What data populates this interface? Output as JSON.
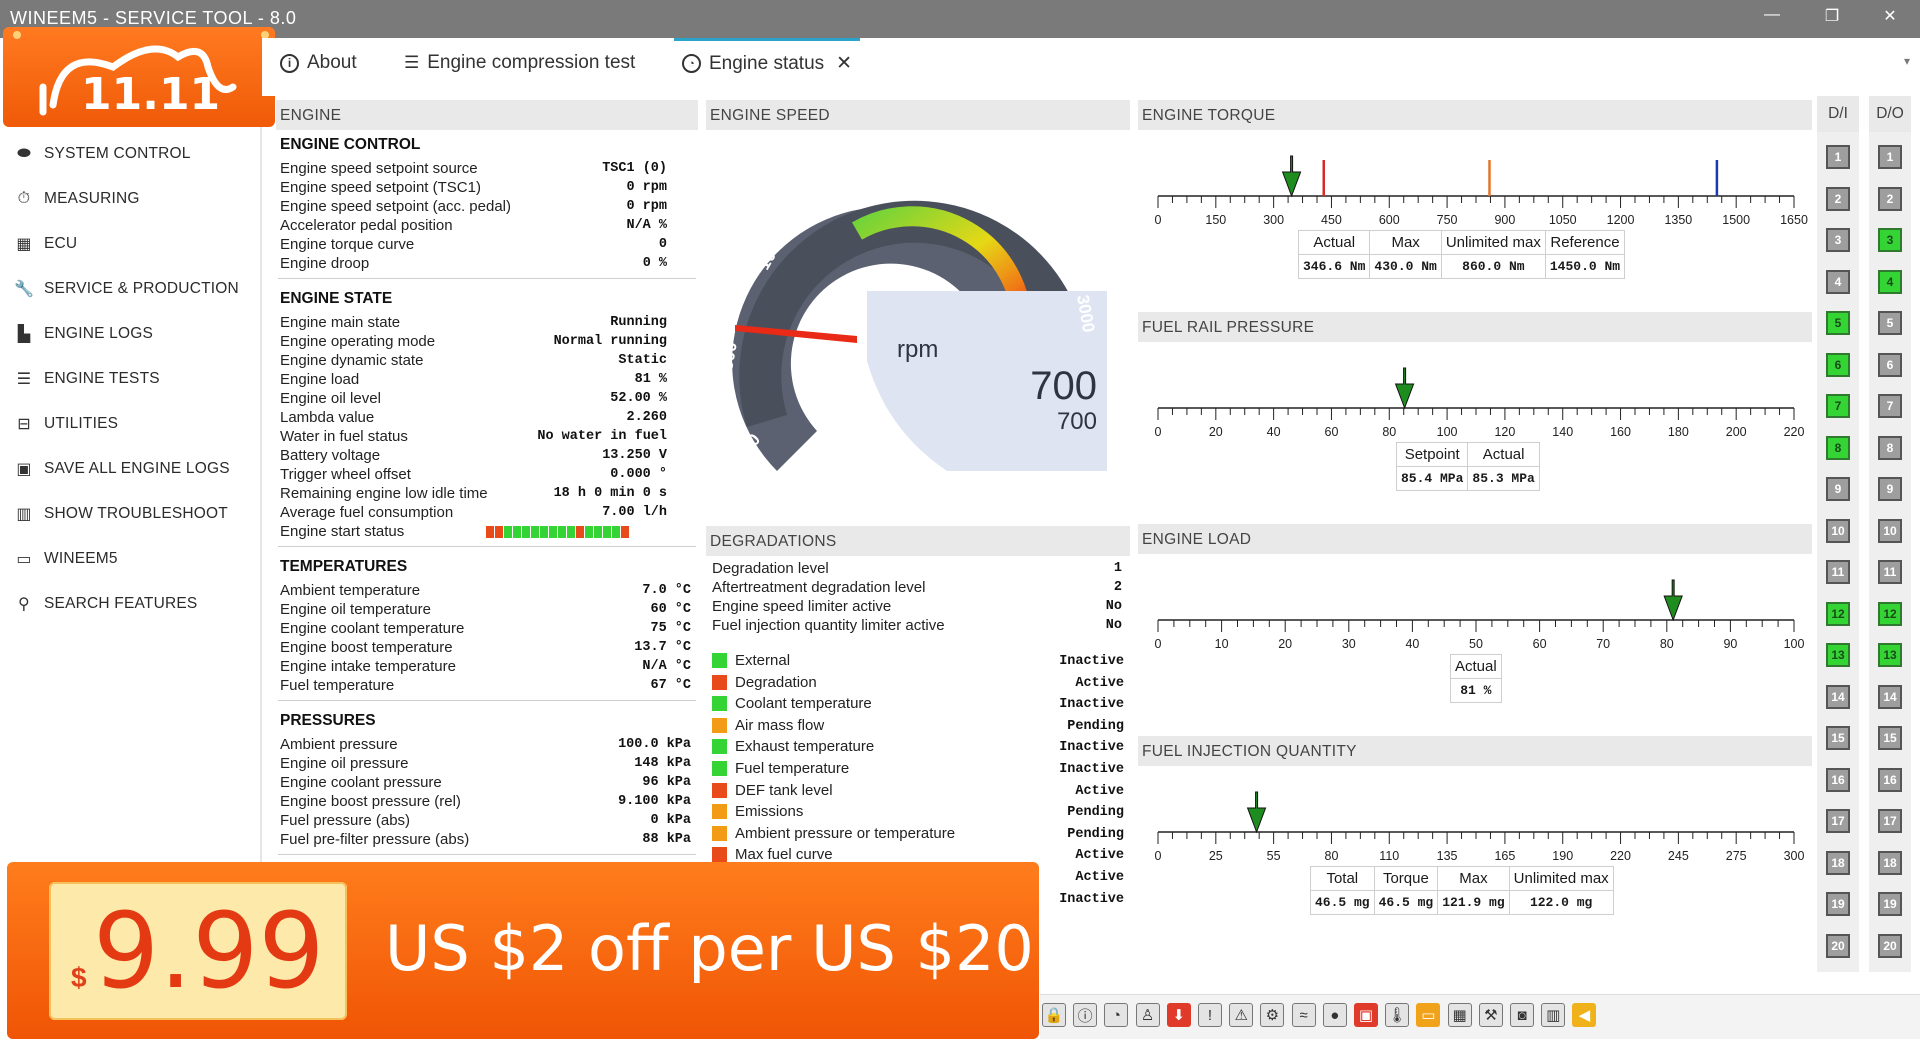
{
  "window": {
    "title": "WINEEM5 - SERVICE TOOL - 8.0",
    "minimize": "—",
    "restore": "❐",
    "close": "✕"
  },
  "promo": {
    "top_logo_text": "11.11",
    "price_currency": "$",
    "price": "9.99",
    "offer": "US $2 off per US $20"
  },
  "sidebar": {
    "items": [
      {
        "label": "SYSTEM CONTROL",
        "icon": "toggle-icon"
      },
      {
        "label": "MEASURING",
        "icon": "stopwatch-icon"
      },
      {
        "label": "ECU",
        "icon": "chip-icon"
      },
      {
        "label": "SERVICE & PRODUCTION",
        "icon": "wrench-icon"
      },
      {
        "label": "ENGINE LOGS",
        "icon": "bar-chart-icon"
      },
      {
        "label": "ENGINE TESTS",
        "icon": "checklist-icon"
      },
      {
        "label": "UTILITIES",
        "icon": "toolbox-icon"
      },
      {
        "label": "SAVE ALL ENGINE LOGS",
        "icon": "save-icon"
      },
      {
        "label": "SHOW TROUBLESHOOT",
        "icon": "book-icon"
      },
      {
        "label": "WINEEM5",
        "icon": "window-icon"
      },
      {
        "label": "SEARCH FEATURES",
        "icon": "search-icon"
      }
    ]
  },
  "tabs": [
    {
      "label": "About",
      "icon": "info-icon"
    },
    {
      "label": "Engine compression test",
      "icon": "list-icon"
    },
    {
      "label": "Engine status",
      "icon": "gauge-icon",
      "close": "✕",
      "active": true
    }
  ],
  "engine": {
    "header": "ENGINE",
    "sections": [
      {
        "title": "ENGINE CONTROL",
        "rows": [
          {
            "label": "Engine speed setpoint source",
            "value": "TSC1 (0)"
          },
          {
            "label": "Engine speed setpoint (TSC1)",
            "value": "0 rpm"
          },
          {
            "label": "Engine speed setpoint (acc. pedal)",
            "value": "0 rpm"
          },
          {
            "label": "Accelerator pedal position",
            "value": "N/A %"
          },
          {
            "label": "Engine torque curve",
            "value": "0"
          },
          {
            "label": "Engine droop",
            "value": "0 %"
          }
        ]
      },
      {
        "title": "ENGINE STATE",
        "rows": [
          {
            "label": "Engine main state",
            "value": "Running"
          },
          {
            "label": "Engine operating mode",
            "value": "Normal running"
          },
          {
            "label": "Engine dynamic state",
            "value": "Static"
          },
          {
            "label": "Engine load",
            "value": "81 %"
          },
          {
            "label": "Engine oil level",
            "value": "52.00 %"
          },
          {
            "label": "Lambda value",
            "value": "2.260"
          },
          {
            "label": "Water in fuel status",
            "value": "No water in fuel"
          },
          {
            "label": "Battery voltage",
            "value": "13.250 V"
          },
          {
            "label": "Trigger wheel offset",
            "value": "0.000 °"
          },
          {
            "label": "Remaining engine low idle time",
            "value": "18 h 0 min 0 s"
          },
          {
            "label": "Average fuel consumption",
            "value": "7.00 l/h"
          },
          {
            "label": "Engine start status",
            "value": ""
          }
        ]
      },
      {
        "title": "TEMPERATURES",
        "rows": [
          {
            "label": "Ambient temperature",
            "value": "7.0 °C"
          },
          {
            "label": "Engine oil temperature",
            "value": "60 °C"
          },
          {
            "label": "Engine coolant temperature",
            "value": "75 °C"
          },
          {
            "label": "Engine boost temperature",
            "value": "13.7 °C"
          },
          {
            "label": "Engine intake temperature",
            "value": "N/A °C"
          },
          {
            "label": "Fuel temperature",
            "value": "67 °C"
          }
        ]
      },
      {
        "title": "PRESSURES",
        "rows": [
          {
            "label": "Ambient pressure",
            "value": "100.0 kPa"
          },
          {
            "label": "Engine oil pressure",
            "value": "148 kPa"
          },
          {
            "label": "Engine coolant pressure",
            "value": "96 kPa"
          },
          {
            "label": "Engine boost pressure (rel)",
            "value": "9.100 kPa"
          },
          {
            "label": "Fuel pressure (abs)",
            "value": "0 kPa"
          },
          {
            "label": "Fuel pre-filter pressure (abs)",
            "value": "88 kPa"
          }
        ]
      }
    ],
    "start_status_colors": [
      "#e84a1a",
      "#e84a1a",
      "#35d435",
      "#35d435",
      "#35d435",
      "#35d435",
      "#35d435",
      "#35d435",
      "#35d435",
      "#35d435",
      "#e84a1a",
      "#35d435",
      "#35d435",
      "#35d435",
      "#35d435",
      "#e84a1a"
    ]
  },
  "engine_speed": {
    "header": "ENGINE SPEED",
    "unit": "rpm",
    "value_large": "700",
    "value_small": "700",
    "ticks": [
      "500",
      "1000",
      "1500",
      "2000",
      "2500",
      "3000",
      "0"
    ]
  },
  "degradations": {
    "header": "DEGRADATIONS",
    "rows": [
      {
        "label": "Degradation level",
        "value": "1"
      },
      {
        "label": "Aftertreatment degradation level",
        "value": "2"
      },
      {
        "label": "Engine speed limiter active",
        "value": "No"
      },
      {
        "label": "Fuel injection quantity limiter active",
        "value": "No"
      }
    ],
    "items": [
      {
        "label": "External",
        "status": "Inactive",
        "color": "#35d435"
      },
      {
        "label": "Degradation",
        "status": "Active",
        "color": "#e84a1a"
      },
      {
        "label": "Coolant temperature",
        "status": "Inactive",
        "color": "#35d435"
      },
      {
        "label": "Air mass flow",
        "status": "Pending",
        "color": "#f29b16"
      },
      {
        "label": "Exhaust temperature",
        "status": "Inactive",
        "color": "#35d435"
      },
      {
        "label": "Fuel temperature",
        "status": "Inactive",
        "color": "#35d435"
      },
      {
        "label": "DEF tank level",
        "status": "Active",
        "color": "#e84a1a"
      },
      {
        "label": "Emissions",
        "status": "Pending",
        "color": "#f29b16"
      },
      {
        "label": "Ambient pressure or temperature",
        "status": "Pending",
        "color": "#f29b16"
      },
      {
        "label": "Max fuel curve",
        "status": "Active",
        "color": "#e84a1a"
      }
    ],
    "extra_status": [
      "Active",
      "Inactive"
    ]
  },
  "torque": {
    "header": "ENGINE TORQUE",
    "ticks": [
      "0",
      "150",
      "300",
      "450",
      "600",
      "750",
      "900",
      "1050",
      "1200",
      "1350",
      "1500",
      "1650"
    ],
    "pointer": 346.6,
    "max_marker": 430.0,
    "unlimited_marker": 860.0,
    "reference_marker": 1450.0,
    "range": [
      0,
      1650
    ],
    "cols": [
      "Actual",
      "Max",
      "Unlimited max",
      "Reference"
    ],
    "vals": [
      "346.6 Nm",
      "430.0 Nm",
      "860.0 Nm",
      "1450.0 Nm"
    ]
  },
  "fuel_rail": {
    "header": "FUEL RAIL PRESSURE",
    "ticks": [
      "0",
      "20",
      "40",
      "60",
      "80",
      "100",
      "120",
      "140",
      "160",
      "180",
      "200",
      "220"
    ],
    "pointer": 85.3,
    "range": [
      0,
      220
    ],
    "cols": [
      "Setpoint",
      "Actual"
    ],
    "vals": [
      "85.4 MPa",
      "85.3 MPa"
    ]
  },
  "engine_load": {
    "header": "ENGINE LOAD",
    "ticks": [
      "0",
      "10",
      "20",
      "30",
      "40",
      "50",
      "60",
      "70",
      "80",
      "90",
      "100"
    ],
    "pointer": 81,
    "range": [
      0,
      100
    ],
    "cols": [
      "Actual"
    ],
    "vals": [
      "81 %"
    ]
  },
  "fuel_injection": {
    "header": "FUEL INJECTION QUANTITY",
    "ticks": [
      "0",
      "25",
      "55",
      "80",
      "110",
      "135",
      "165",
      "190",
      "220",
      "245",
      "275",
      "300"
    ],
    "pointer": 46.5,
    "range": [
      0,
      300
    ],
    "cols": [
      "Total",
      "Torque",
      "Max",
      "Unlimited max"
    ],
    "vals": [
      "46.5 mg",
      "46.5 mg",
      "121.9 mg",
      "122.0 mg"
    ]
  },
  "io": {
    "di_header": "D/I",
    "do_header": "D/O",
    "di_on": [
      5,
      6,
      7,
      8,
      12,
      13
    ],
    "do_on": [
      3,
      4,
      12,
      13
    ],
    "labels": [
      "1",
      "2",
      "3",
      "4",
      "5",
      "6",
      "7",
      "8",
      "9",
      "10",
      "11",
      "12",
      "13",
      "14",
      "15",
      "16",
      "17",
      "18",
      "19",
      "20"
    ]
  },
  "toolbar": {
    "icons": [
      "lock-icon",
      "info-icon",
      "gauge-icon",
      "person-icon",
      "download-icon",
      "alert-circle-icon",
      "warning-icon",
      "engine-icon",
      "coolant-icon",
      "oil-icon",
      "ecu-red-icon",
      "temperature-icon",
      "battery-icon",
      "grid-icon",
      "wrench-icon",
      "camera-icon",
      "heater-icon",
      "horn-icon"
    ]
  }
}
